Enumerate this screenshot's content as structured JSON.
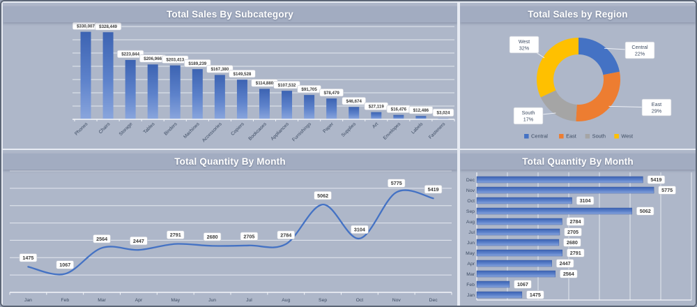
{
  "theme": {
    "background": "#aeb7c9",
    "title_band": "#a2acc1",
    "title_text": "#ffffff",
    "gridline": "#eef1f7",
    "axis_line": "#f4f6fa",
    "axis_text": "#3b4a61",
    "label_box_fill": "#ffffff",
    "label_box_border": "#c3c8d2",
    "label_text": "#3a3a3a",
    "bar_gradient_top": "#3c63b2",
    "bar_gradient_mid": "#5d82cb",
    "bar_gradient_bottom": "#8aa6dd",
    "line_color": "#4472c4",
    "outer_border": "#5c6676"
  },
  "chart_data": [
    {
      "id": "sales-by-subcategory",
      "type": "bar",
      "title": "Total Sales By Subcategory",
      "categories": [
        "Phones",
        "Chairs",
        "Storage",
        "Tables",
        "Binders",
        "Machines",
        "Accessories",
        "Copiers",
        "Bookcases",
        "Appliances",
        "Furnishings",
        "Paper",
        "Supplies",
        "Art",
        "Envelopes",
        "Labels",
        "Fasteners"
      ],
      "values": [
        330007,
        328449,
        223844,
        206966,
        203413,
        189239,
        167380,
        149528,
        114880,
        107532,
        91705,
        78479,
        46674,
        27119,
        16476,
        12486,
        3024
      ],
      "labels": [
        "$330,007",
        "$328,449",
        "$223,844",
        "$206,966",
        "$203,413",
        "$189,239",
        "$167,380",
        "$149,528",
        "$114,880",
        "$107,532",
        "$91,705",
        "$78,479",
        "$46,674",
        "$27,119",
        "$16,476",
        "$12,486",
        "$3,024"
      ],
      "ylim": [
        0,
        350000
      ],
      "grid_step": 50000,
      "grid": "on",
      "legend": "none"
    },
    {
      "id": "sales-by-region",
      "type": "pie",
      "title": "Total Sales by Region",
      "donut_hole": 0.6,
      "slices": [
        {
          "name": "Central",
          "pct": 22,
          "color": "#4472c4"
        },
        {
          "name": "East",
          "pct": 29,
          "color": "#ed7d31"
        },
        {
          "name": "South",
          "pct": 17,
          "color": "#a5a5a5"
        },
        {
          "name": "West",
          "pct": 32,
          "color": "#ffc000"
        }
      ],
      "callouts": [
        "West 32%",
        "Central 22%",
        "East 29%",
        "South 17%"
      ],
      "legend_position": "bottom",
      "legend": [
        "Central",
        "East",
        "South",
        "West"
      ]
    },
    {
      "id": "quantity-by-month-line",
      "type": "line",
      "title": "Total Quantity By Month",
      "categories": [
        "Jan",
        "Feb",
        "Mar",
        "Apr",
        "May",
        "Jun",
        "Jul",
        "Aug",
        "Sep",
        "Oct",
        "Nov",
        "Dec"
      ],
      "values": [
        1475,
        1067,
        2564,
        2447,
        2791,
        2680,
        2705,
        2784,
        5062,
        3104,
        5775,
        5419
      ],
      "labels": [
        "1475",
        "1067",
        "2564",
        "2447",
        "2791",
        "2680",
        "2705",
        "2784",
        "5062",
        "3104",
        "5775",
        "5419"
      ],
      "ylim": [
        0,
        7000
      ],
      "grid_step": 1000,
      "grid": "on",
      "smooth": true,
      "legend": "none"
    },
    {
      "id": "quantity-by-month-hbar",
      "type": "bar",
      "orientation": "horizontal",
      "title": "Total Quantity By Month",
      "categories": [
        "Dec",
        "Nov",
        "Oct",
        "Sep",
        "Aug",
        "Jul",
        "Jun",
        "May",
        "Apr",
        "Mar",
        "Feb",
        "Jan"
      ],
      "values": [
        5419,
        5775,
        3104,
        5062,
        2784,
        2705,
        2680,
        2791,
        2447,
        2564,
        1067,
        1475
      ],
      "labels": [
        "5419",
        "5775",
        "3104",
        "5062",
        "2784",
        "2705",
        "2680",
        "2791",
        "2447",
        "2564",
        "1067",
        "1475"
      ],
      "xlim": [
        0,
        7000
      ],
      "grid_step": 1000,
      "grid": "on",
      "legend": "none"
    }
  ]
}
